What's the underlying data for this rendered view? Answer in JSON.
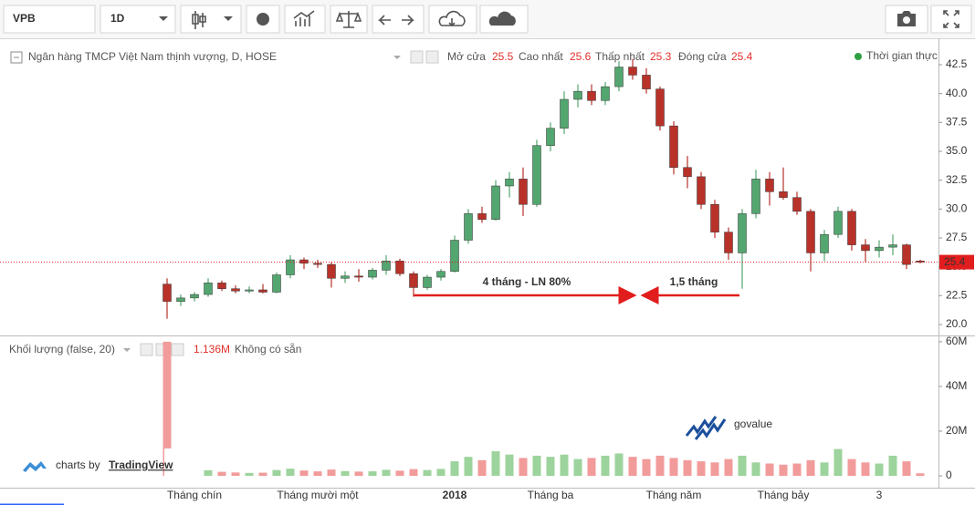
{
  "toolbar": {
    "symbol": "VPB",
    "interval": "1D"
  },
  "chart_data": {
    "type": "candlestick",
    "title": "Ngân hàng TMCP Việt Nam thịnh vượng, D, HOSE",
    "legend_labels": {
      "open": "Mở cửa",
      "high": "Cao nhất",
      "low": "Thấp nhất",
      "close": "Đóng cửa"
    },
    "status": "Thời gian thực",
    "categories": [
      null,
      null,
      "Tháng chín",
      null,
      null,
      null,
      null,
      null,
      null,
      null,
      null,
      "Tháng mười một",
      null,
      null,
      null,
      null,
      null,
      null,
      null,
      null,
      null,
      "2018",
      null,
      null,
      null,
      null,
      null,
      null,
      "Tháng ba",
      null,
      null,
      null,
      null,
      null,
      null,
      null,
      null,
      "Tháng năm",
      null,
      null,
      null,
      null,
      null,
      null,
      null,
      "Tháng bảy",
      null,
      null,
      null,
      null,
      null,
      null,
      "3",
      null,
      null,
      null
    ],
    "open": [
      23.5,
      22.0,
      22.3,
      22.6,
      23.6,
      23.1,
      22.9,
      23.0,
      22.8,
      24.3,
      25.6,
      25.3,
      25.2,
      24.0,
      24.2,
      24.1,
      24.7,
      25.5,
      24.4,
      23.2,
      24.1,
      24.6,
      27.3,
      29.6,
      29.1,
      32.0,
      32.6,
      30.4,
      35.5,
      37.0,
      39.5,
      40.2,
      39.4,
      40.6,
      42.3,
      41.6,
      40.4,
      37.2,
      33.6,
      32.8,
      30.4,
      28.0,
      26.2,
      29.6,
      32.6,
      31.5,
      31.0,
      29.8,
      26.2,
      27.8,
      29.8,
      26.9,
      26.4,
      26.7,
      26.9,
      25.5
    ],
    "high": [
      24.0,
      22.6,
      22.8,
      24.0,
      23.8,
      23.4,
      23.3,
      23.5,
      24.5,
      26.0,
      25.8,
      25.6,
      25.4,
      24.6,
      24.8,
      24.9,
      26.0,
      25.7,
      24.6,
      24.3,
      24.8,
      27.7,
      30.0,
      30.2,
      32.5,
      33.2,
      33.6,
      36.0,
      37.5,
      40.2,
      40.8,
      40.8,
      41.0,
      42.8,
      43.0,
      42.2,
      40.6,
      37.6,
      34.6,
      33.2,
      30.8,
      28.4,
      30.0,
      33.4,
      33.2,
      33.6,
      31.5,
      30.0,
      28.2,
      30.2,
      30.0,
      27.4,
      27.3,
      27.8,
      27.0,
      25.6
    ],
    "low": [
      20.5,
      21.6,
      22.0,
      22.4,
      22.9,
      22.7,
      22.7,
      22.7,
      22.7,
      24.0,
      24.8,
      24.9,
      23.2,
      23.6,
      23.7,
      23.9,
      24.3,
      24.2,
      22.4,
      23.0,
      23.8,
      24.5,
      27.0,
      28.8,
      29.0,
      31.0,
      29.4,
      30.2,
      35.0,
      36.5,
      38.8,
      39.0,
      39.0,
      40.2,
      41.2,
      40.0,
      36.8,
      33.0,
      31.8,
      30.0,
      27.5,
      25.6,
      23.1,
      29.2,
      30.3,
      30.8,
      29.5,
      24.6,
      25.5,
      27.5,
      26.4,
      25.4,
      25.8,
      26.0,
      24.8,
      25.3
    ],
    "close": [
      22.0,
      22.3,
      22.6,
      23.6,
      23.1,
      22.9,
      23.0,
      22.8,
      24.3,
      25.6,
      25.3,
      25.2,
      24.0,
      24.2,
      24.1,
      24.7,
      25.5,
      24.4,
      23.2,
      24.1,
      24.6,
      27.3,
      29.6,
      29.1,
      32.0,
      32.6,
      30.4,
      35.5,
      37.0,
      39.5,
      40.2,
      39.4,
      40.6,
      42.3,
      41.6,
      40.4,
      37.2,
      33.6,
      32.8,
      30.4,
      28.0,
      26.2,
      29.6,
      32.6,
      31.5,
      31.0,
      29.8,
      26.2,
      27.8,
      29.8,
      26.9,
      26.4,
      26.7,
      26.9,
      25.2,
      25.4
    ],
    "up_color": "#53a66f",
    "down_color": "#b8322a",
    "ylim": [
      19.13,
      44.79
    ],
    "yticks": [
      {
        "value": 20,
        "label": "20.0"
      },
      22.5,
      {
        "value": 25,
        "label": "25.0"
      },
      27.5,
      {
        "value": 30,
        "label": "30.0"
      },
      32.5,
      {
        "value": 35,
        "label": "35.0"
      },
      37.5,
      {
        "value": 40,
        "label": "40.0"
      },
      42.5
    ],
    "annotations": [
      {
        "text": "4 tháng - LN 80%"
      },
      {
        "text": "1,5 tháng"
      }
    ],
    "volume": {
      "name": "Khối lượng (false, 20)",
      "last_label": "1.136M",
      "note": "Không có sẵn",
      "up_color": "#9dd39c",
      "down_color": "#f29b9b",
      "values": [
        60000000,
        1500000,
        1200000,
        2500000,
        1800000,
        1500000,
        1300000,
        1400000,
        2600000,
        3200000,
        2400000,
        2000000,
        2800000,
        2100000,
        1900000,
        2000000,
        2700000,
        2300000,
        3000000,
        2600000,
        3100000,
        6500000,
        8500000,
        7000000,
        11000000,
        9500000,
        8000000,
        9000000,
        8500000,
        9500000,
        7500000,
        8000000,
        9000000,
        10000000,
        8500000,
        7500000,
        9000000,
        8000000,
        7000000,
        6500000,
        6000000,
        7500000,
        9000000,
        6000000,
        5500000,
        5000000,
        5500000,
        7000000,
        6000000,
        12000000,
        7500000,
        6000000,
        5500000,
        9000000,
        6500000,
        1136000
      ],
      "ylim": [
        -5300000,
        62400000
      ],
      "yticks": [
        0,
        {
          "value": 20000000,
          "label": "20M"
        },
        {
          "value": 40000000,
          "label": "40M"
        },
        {
          "value": 60000000,
          "label": "60M"
        }
      ]
    }
  },
  "branding": {
    "credit": "charts by",
    "brand": "TradingView",
    "logo": "govalue"
  }
}
